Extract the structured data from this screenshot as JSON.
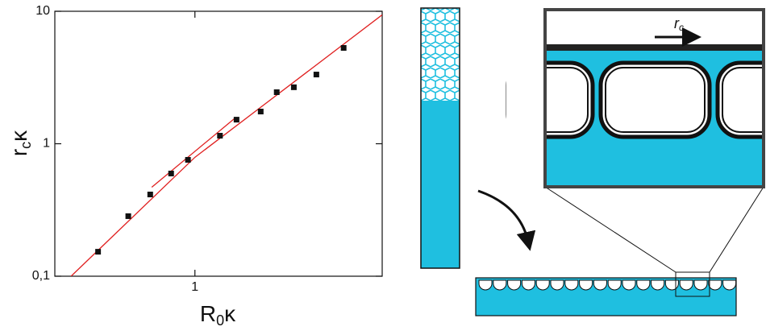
{
  "chart_data": {
    "type": "scatter",
    "x_label": [
      "R",
      "0",
      "κ"
    ],
    "y_label": [
      "r",
      "c",
      "κ"
    ],
    "xscale": "log",
    "yscale": "log",
    "xlim": [
      0.3,
      5
    ],
    "ylim": [
      0.1,
      10
    ],
    "xticks": [
      1
    ],
    "yticks": [
      {
        "value": 0.1,
        "label": "0,1"
      },
      1,
      10
    ],
    "series": [
      {
        "color": "#111111",
        "x": [
          0.435,
          0.564,
          0.681,
          0.815,
          0.942,
          1.24,
          1.43,
          1.76,
          2.02,
          2.34,
          2.84,
          3.59
        ],
        "values": [
          0.153,
          0.284,
          0.414,
          0.596,
          0.756,
          1.15,
          1.52,
          1.75,
          2.45,
          2.67,
          3.33,
          5.29
        ]
      }
    ],
    "fit_lines": [
      {
        "color": "#e02020",
        "x": [
          0.345,
          1,
          5
        ],
        "values": [
          0.1,
          0.79,
          9.4
        ]
      },
      {
        "color": "#e02020",
        "x": [
          0.69,
          1.4
        ],
        "values": [
          0.47,
          1.54
        ]
      }
    ]
  },
  "diagram": {
    "label": [
      "r",
      "c"
    ]
  }
}
